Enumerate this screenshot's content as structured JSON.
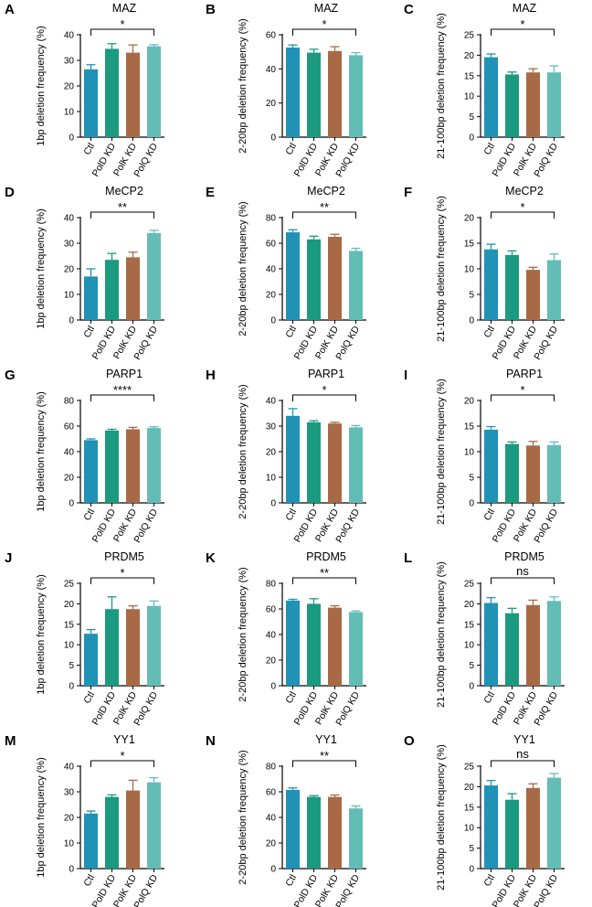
{
  "figure": {
    "categories": [
      "Ctl",
      "PolD KD",
      "PolK KD",
      "PolQ KD"
    ],
    "bar_colors": [
      "#1f92b6",
      "#1a9a7e",
      "#a86a46",
      "#63bdb7"
    ],
    "axis_color": "#000000"
  },
  "chart_data": [
    {
      "panel": "A",
      "type": "bar",
      "title": "MAZ",
      "ylabel": "1bp deletion frequency (%)",
      "ylim": [
        0,
        40
      ],
      "ticks": [
        0,
        10,
        20,
        30,
        40
      ],
      "categories": [
        "Ctl",
        "PolD KD",
        "PolK KD",
        "PolQ KD"
      ],
      "values": [
        26.5,
        34.5,
        33.0,
        35.5
      ],
      "errors": [
        1.8,
        2.0,
        3.0,
        0.6
      ],
      "significance": "*"
    },
    {
      "panel": "B",
      "type": "bar",
      "title": "MAZ",
      "ylabel": "2-20bp deletion frequency (%)",
      "ylim": [
        0,
        60
      ],
      "ticks": [
        0,
        20,
        40,
        60
      ],
      "categories": [
        "Ctl",
        "PolD KD",
        "PolK KD",
        "PolQ KD"
      ],
      "values": [
        52.5,
        49.5,
        50.5,
        48.0
      ],
      "errors": [
        1.5,
        2.0,
        2.5,
        1.5
      ],
      "significance": "*"
    },
    {
      "panel": "C",
      "type": "bar",
      "title": "MAZ",
      "ylabel": "21-100bp deletion frequency (%)",
      "ylim": [
        0,
        25
      ],
      "ticks": [
        0,
        5,
        10,
        15,
        20,
        25
      ],
      "categories": [
        "Ctl",
        "PolD KD",
        "PolK KD",
        "PolQ KD"
      ],
      "values": [
        19.5,
        15.3,
        15.8,
        15.8
      ],
      "errors": [
        0.8,
        0.6,
        0.9,
        1.6
      ],
      "significance": "*"
    },
    {
      "panel": "D",
      "type": "bar",
      "title": "MeCP2",
      "ylabel": "1bp deletion frequency (%)",
      "ylim": [
        0,
        40
      ],
      "ticks": [
        0,
        10,
        20,
        30,
        40
      ],
      "categories": [
        "Ctl",
        "PolD KD",
        "PolK KD",
        "PolQ KD"
      ],
      "values": [
        17.0,
        23.5,
        24.5,
        34.0
      ],
      "errors": [
        3.0,
        2.5,
        2.0,
        1.0
      ],
      "significance": "**"
    },
    {
      "panel": "E",
      "type": "bar",
      "title": "MeCP2",
      "ylabel": "2-20bp deletion frequency (%)",
      "ylim": [
        0,
        80
      ],
      "ticks": [
        0,
        20,
        40,
        60,
        80
      ],
      "categories": [
        "Ctl",
        "PolD KD",
        "PolK KD",
        "PolQ KD"
      ],
      "values": [
        68.5,
        63.0,
        65.0,
        54.0
      ],
      "errors": [
        2.0,
        2.5,
        2.0,
        2.0
      ],
      "significance": "**"
    },
    {
      "panel": "F",
      "type": "bar",
      "title": "MeCP2",
      "ylabel": "21-100bp deletion frequency (%)",
      "ylim": [
        0,
        20
      ],
      "ticks": [
        0,
        5,
        10,
        15,
        20
      ],
      "categories": [
        "Ctl",
        "PolD KD",
        "PolK KD",
        "PolQ KD"
      ],
      "values": [
        13.8,
        12.7,
        9.8,
        11.7
      ],
      "errors": [
        1.0,
        0.8,
        0.5,
        1.2
      ],
      "significance": "*"
    },
    {
      "panel": "G",
      "type": "bar",
      "title": "PARP1",
      "ylabel": "1bp deletion frequency (%)",
      "ylim": [
        0,
        80
      ],
      "ticks": [
        0,
        20,
        40,
        60,
        80
      ],
      "categories": [
        "Ctl",
        "PolD KD",
        "PolK KD",
        "PolQ KD"
      ],
      "values": [
        49.0,
        56.5,
        57.5,
        58.5
      ],
      "errors": [
        1.0,
        1.0,
        1.5,
        1.0
      ],
      "significance": "****"
    },
    {
      "panel": "H",
      "type": "bar",
      "title": "PARP1",
      "ylabel": "2-20bp deletion frequency (%)",
      "ylim": [
        0,
        40
      ],
      "ticks": [
        0,
        10,
        20,
        30,
        40
      ],
      "categories": [
        "Ctl",
        "PolD KD",
        "PolK KD",
        "PolQ KD"
      ],
      "values": [
        34.0,
        31.5,
        31.0,
        29.5
      ],
      "errors": [
        2.8,
        0.6,
        0.5,
        0.7
      ],
      "significance": "*"
    },
    {
      "panel": "I",
      "type": "bar",
      "title": "PARP1",
      "ylabel": "21-100bp deletion frequency (%)",
      "ylim": [
        0,
        20
      ],
      "ticks": [
        0,
        5,
        10,
        15,
        20
      ],
      "categories": [
        "Ctl",
        "PolD KD",
        "PolK KD",
        "PolQ KD"
      ],
      "values": [
        14.3,
        11.5,
        11.2,
        11.3
      ],
      "errors": [
        0.6,
        0.4,
        0.8,
        0.6
      ],
      "significance": "*"
    },
    {
      "panel": "J",
      "type": "bar",
      "title": "PRDM5",
      "ylabel": "1bp deletion frequency (%)",
      "ylim": [
        0,
        25
      ],
      "ticks": [
        0,
        5,
        10,
        15,
        20,
        25
      ],
      "categories": [
        "Ctl",
        "PolD KD",
        "PolK KD",
        "PolQ KD"
      ],
      "values": [
        12.7,
        18.7,
        18.7,
        19.5
      ],
      "errors": [
        1.0,
        3.0,
        0.8,
        1.2
      ],
      "significance": "*"
    },
    {
      "panel": "K",
      "type": "bar",
      "title": "PRDM5",
      "ylabel": "2-20bp deletion frequency (%)",
      "ylim": [
        0,
        80
      ],
      "ticks": [
        0,
        20,
        40,
        60,
        80
      ],
      "categories": [
        "Ctl",
        "PolD KD",
        "PolK KD",
        "PolQ KD"
      ],
      "values": [
        66.5,
        64.0,
        61.0,
        57.5
      ],
      "errors": [
        1.0,
        4.0,
        1.5,
        1.0
      ],
      "significance": "**"
    },
    {
      "panel": "L",
      "type": "bar",
      "title": "PRDM5",
      "ylabel": "21-100bp deletion frequency (%)",
      "ylim": [
        0,
        25
      ],
      "ticks": [
        0,
        5,
        10,
        15,
        20,
        25
      ],
      "categories": [
        "Ctl",
        "PolD KD",
        "PolK KD",
        "PolQ KD"
      ],
      "values": [
        20.2,
        17.7,
        19.7,
        20.7
      ],
      "errors": [
        1.3,
        1.2,
        1.2,
        1.0
      ],
      "significance": "ns"
    },
    {
      "panel": "M",
      "type": "bar",
      "title": "YY1",
      "ylabel": "1bp deletion frequency (%)",
      "ylim": [
        0,
        40
      ],
      "ticks": [
        0,
        10,
        20,
        30,
        40
      ],
      "categories": [
        "Ctl",
        "PolD KD",
        "PolK KD",
        "PolQ KD"
      ],
      "values": [
        21.5,
        28.0,
        30.5,
        33.7
      ],
      "errors": [
        1.0,
        0.8,
        4.0,
        1.8
      ],
      "significance": "*"
    },
    {
      "panel": "N",
      "type": "bar",
      "title": "YY1",
      "ylabel": "2-20bp deletion frequency (%)",
      "ylim": [
        0,
        80
      ],
      "ticks": [
        0,
        20,
        40,
        60,
        80
      ],
      "categories": [
        "Ctl",
        "PolD KD",
        "PolK KD",
        "PolQ KD"
      ],
      "values": [
        61.5,
        56.0,
        56.0,
        47.0
      ],
      "errors": [
        1.5,
        1.0,
        1.5,
        2.0
      ],
      "significance": "**"
    },
    {
      "panel": "O",
      "type": "bar",
      "title": "YY1",
      "ylabel": "21-100bp deletion frequency (%)",
      "ylim": [
        0,
        25
      ],
      "ticks": [
        0,
        5,
        10,
        15,
        20,
        25
      ],
      "categories": [
        "Ctl",
        "PolD KD",
        "PolK KD",
        "PolQ KD"
      ],
      "values": [
        20.3,
        16.8,
        19.7,
        22.2
      ],
      "errors": [
        1.2,
        1.5,
        1.0,
        1.0
      ],
      "significance": "ns"
    }
  ]
}
